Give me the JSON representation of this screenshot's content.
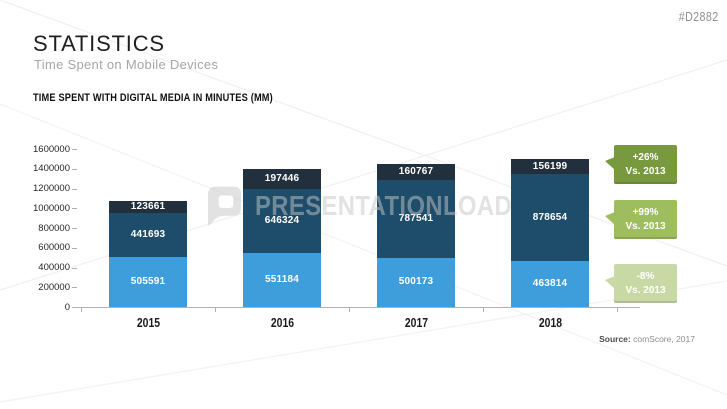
{
  "slide": {
    "id_tag": "#D2882",
    "title": "STATISTICS",
    "subtitle": "Time Spent on Mobile Devices",
    "section_header": "TIME SPENT WITH DIGITAL MEDIA IN MINUTES (MM)",
    "watermark_text": "PRESENTATIONLOAD",
    "source_label": "Source:",
    "source_text": " comScore, 2017"
  },
  "chart_data": {
    "type": "bar",
    "stacked": true,
    "title": "TIME SPENT WITH DIGITAL MEDIA IN MINUTES (MM)",
    "categories": [
      "2015",
      "2016",
      "2017",
      "2018"
    ],
    "series": [
      {
        "name": "bottom-segment",
        "color": "#3e9ddb",
        "values": [
          505591,
          551184,
          500173,
          463814
        ]
      },
      {
        "name": "middle-segment",
        "color": "#1e4d6b",
        "values": [
          441693,
          646324,
          787541,
          878654
        ]
      },
      {
        "name": "top-segment",
        "color": "#222f3d",
        "values": [
          123661,
          197446,
          160767,
          156199
        ]
      }
    ],
    "xlabel": "",
    "ylabel": "",
    "ylim": [
      0,
      1600000
    ],
    "ytick_step": 200000,
    "yticks": [
      "0",
      "200000",
      "400000",
      "600000",
      "800000",
      "1000000",
      "1200000",
      "1400000",
      "1600000"
    ],
    "grid": false,
    "legend": false,
    "value_labels": "inside white bold"
  },
  "badges": [
    {
      "line1": "+26%",
      "line2": "Vs. 2013",
      "color": "#79993f"
    },
    {
      "line1": "+99%",
      "line2": "Vs. 2013",
      "color": "#9ebd5e"
    },
    {
      "line1": "-8%",
      "line2": "Vs. 2013",
      "color": "#c9d9a6"
    }
  ]
}
